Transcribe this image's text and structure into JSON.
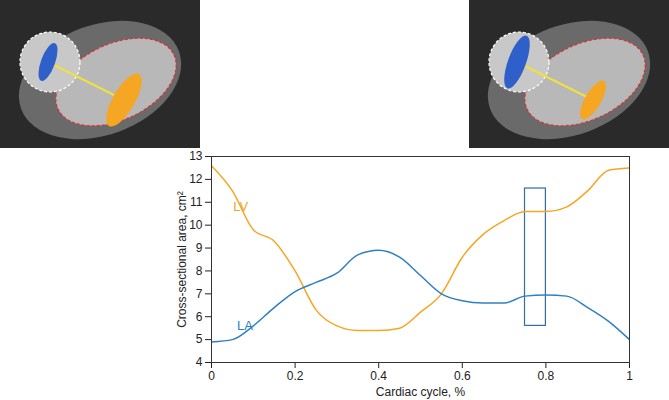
{
  "chart_data": {
    "type": "line",
    "x_label": "Cardiac cycle, %",
    "y_label": "Cross-sectional area, cm²",
    "x": [
      0,
      0.05,
      0.1,
      0.15,
      0.2,
      0.25,
      0.3,
      0.35,
      0.4,
      0.45,
      0.5,
      0.55,
      0.6,
      0.65,
      0.7,
      0.75,
      0.8,
      0.85,
      0.9,
      0.95,
      1
    ],
    "series": [
      {
        "name": "LV",
        "color": "#f5a623",
        "values": [
          12.6,
          11.5,
          9.8,
          9.3,
          8.0,
          6.3,
          5.6,
          5.4,
          5.4,
          5.5,
          6.2,
          7.0,
          8.6,
          9.6,
          10.2,
          10.6,
          10.6,
          10.8,
          11.5,
          12.4,
          12.5
        ]
      },
      {
        "name": "LA",
        "color": "#2f80c3",
        "values": [
          4.9,
          5.0,
          5.6,
          6.4,
          7.1,
          7.5,
          7.9,
          8.7,
          8.9,
          8.6,
          7.8,
          7.0,
          6.7,
          6.6,
          6.6,
          6.9,
          6.95,
          6.9,
          6.4,
          5.8,
          5.0
        ]
      }
    ],
    "annotations": [
      {
        "text": "LV",
        "x": 0.07,
        "y": 10.8,
        "color": "#f5a623"
      },
      {
        "text": "LA",
        "x": 0.08,
        "y": 5.6,
        "color": "#2f80c3"
      }
    ],
    "highlight_box": {
      "x": [
        0.75,
        0.8
      ],
      "y": [
        5.6,
        11.6
      ],
      "color": "#2f6ea6"
    },
    "xlim": [
      0,
      1
    ],
    "ylim": [
      4,
      13
    ],
    "xticks": [
      0,
      0.2,
      0.4,
      0.6,
      0.8,
      1
    ],
    "yticks": [
      4,
      5,
      6,
      7,
      8,
      9,
      10,
      11,
      12,
      13
    ],
    "grid": false
  }
}
